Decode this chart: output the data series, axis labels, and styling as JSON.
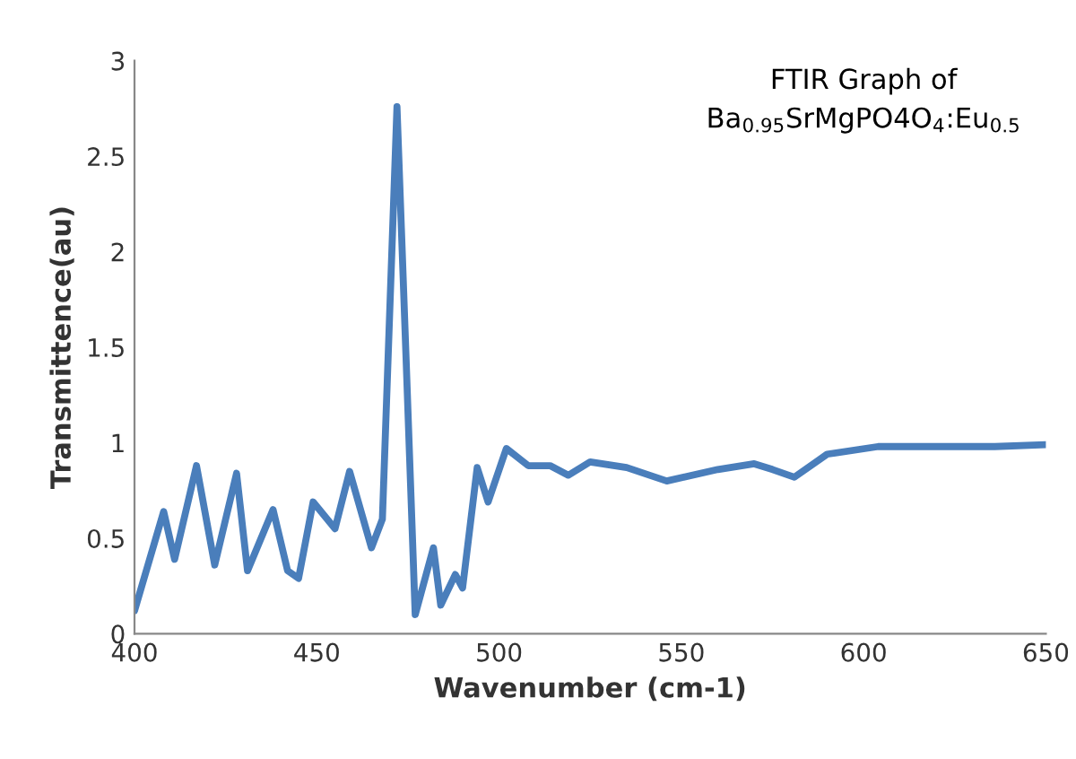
{
  "chart_data": {
    "type": "line",
    "title": "FTIR Graph of\nBa$_{0.95}$SrMgPO4O$_{4}$:Eu$_{0.5}$",
    "xlabel": "Wavenumber (cm-1)",
    "ylabel": "Transmittence(au)",
    "x": [
      400,
      408,
      411,
      417,
      422,
      428,
      431,
      438,
      442,
      445,
      449,
      455,
      459,
      465,
      468,
      472,
      474.5,
      477,
      482,
      484,
      488,
      490,
      494,
      497,
      502,
      508,
      514,
      519,
      525,
      535,
      546,
      560,
      570,
      575,
      581,
      590,
      604,
      619,
      636,
      650
    ],
    "series": [
      {
        "color": "#4a7ebb",
        "values": [
          0.12,
          0.64,
          0.39,
          0.88,
          0.36,
          0.84,
          0.33,
          0.65,
          0.33,
          0.29,
          0.69,
          0.55,
          0.85,
          0.45,
          0.6,
          2.76,
          1.44,
          0.1,
          0.45,
          0.15,
          0.31,
          0.24,
          0.87,
          0.69,
          0.97,
          0.88,
          0.88,
          0.83,
          0.9,
          0.87,
          0.8,
          0.86,
          0.89,
          0.86,
          0.82,
          0.94,
          0.98,
          0.98,
          0.98,
          0.99
        ]
      }
    ],
    "xlim": [
      400,
      650
    ],
    "ylim": [
      0,
      3
    ],
    "xticks": [
      400,
      450,
      500,
      550,
      600,
      650
    ],
    "yticks": [
      0,
      0.5,
      1,
      1.5,
      2,
      2.5,
      3
    ],
    "grid": false,
    "legend": false,
    "marker": "none",
    "line_style": "solid"
  }
}
